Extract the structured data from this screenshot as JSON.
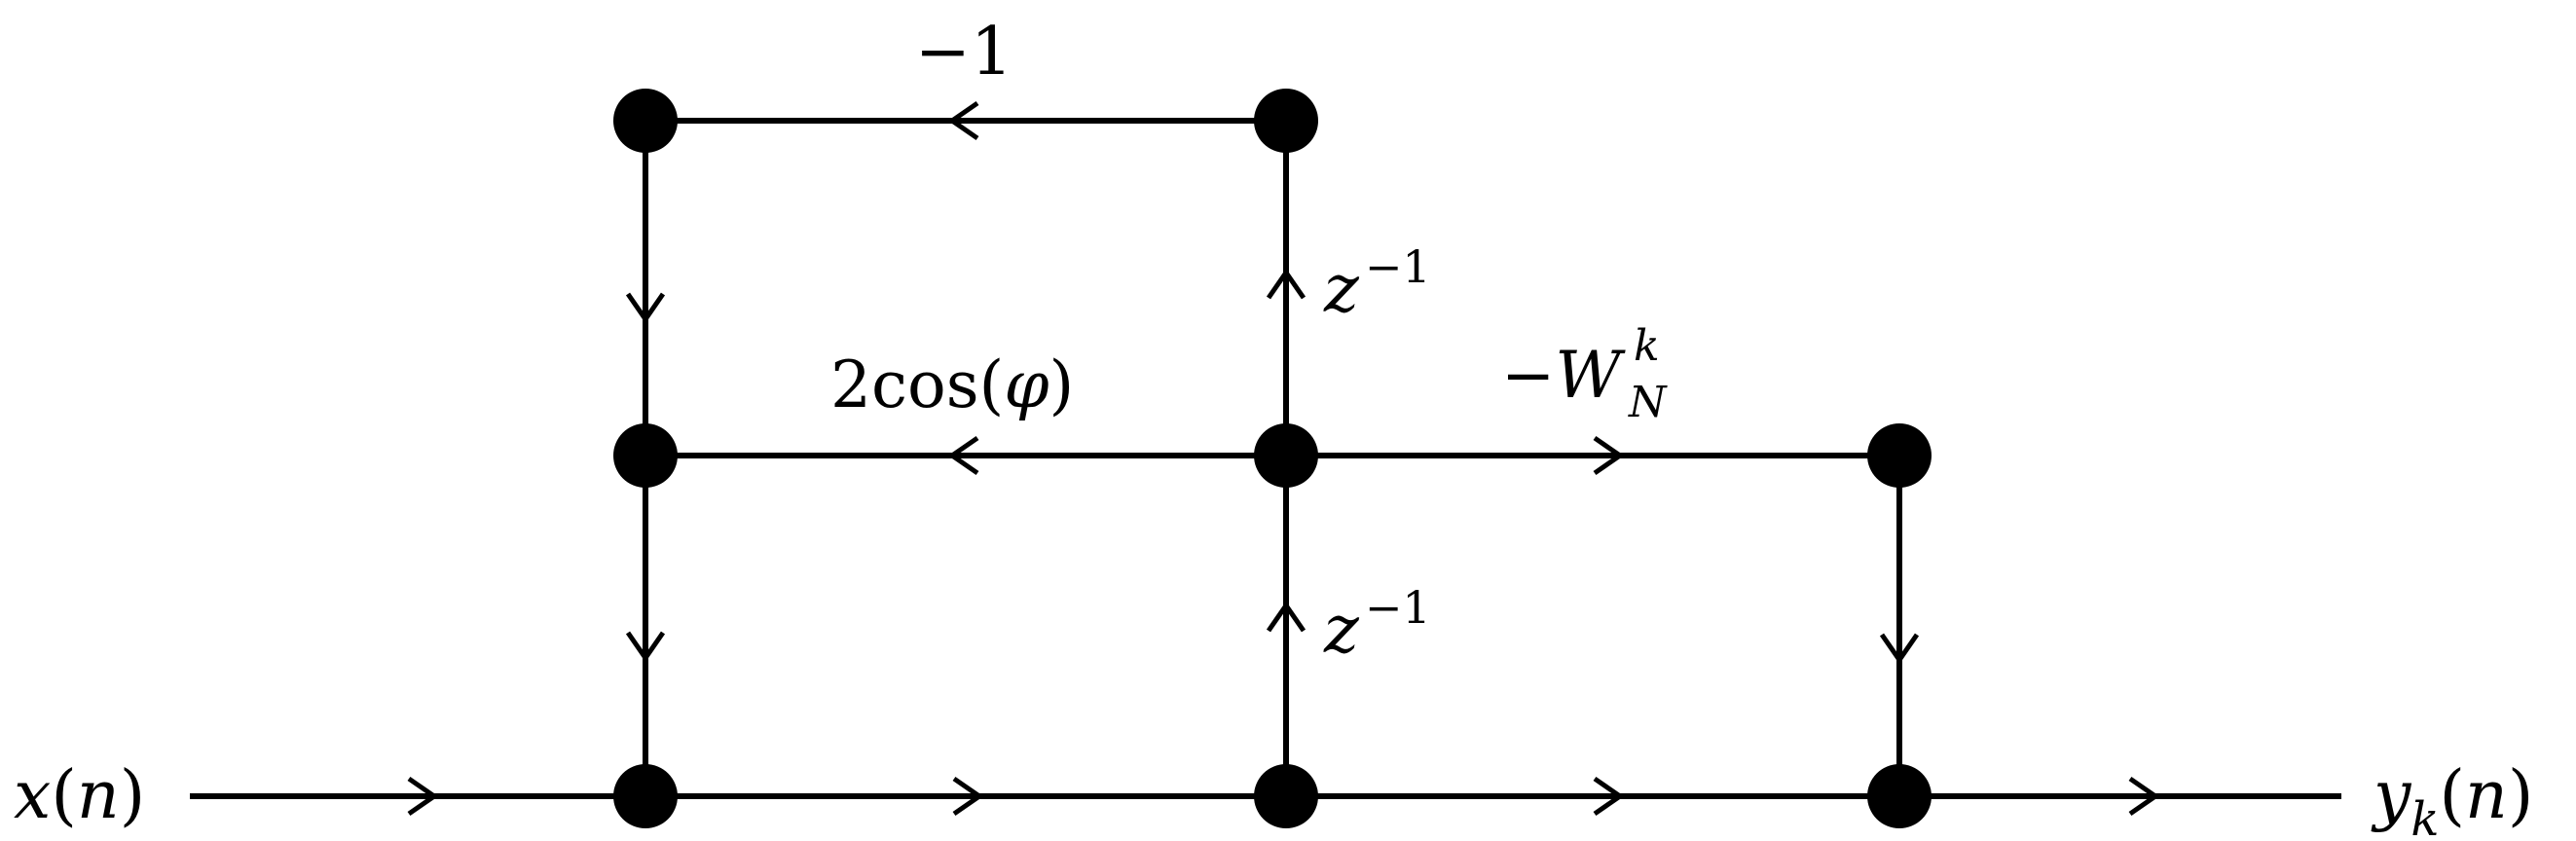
{
  "diagram": {
    "input_label": {
      "base": "x",
      "open": "(",
      "arg": "n",
      "close": ")"
    },
    "output_label": {
      "base": "y",
      "sub": "k",
      "open": "(",
      "arg": "n",
      "close": ")"
    },
    "edge_labels": {
      "minus_one": "−1",
      "two_cos": {
        "prefix": "2cos(",
        "var": "φ",
        "suffix": ")"
      },
      "neg_twiddle": {
        "sign": "−",
        "base": "W",
        "sup": "k",
        "sub": "N"
      },
      "delay_upper": {
        "base": "z",
        "sup": "−1"
      },
      "delay_lower": {
        "base": "z",
        "sup": "−1"
      }
    },
    "node_color": "#000000",
    "line_color": "#000000",
    "background": "#ffffff"
  }
}
